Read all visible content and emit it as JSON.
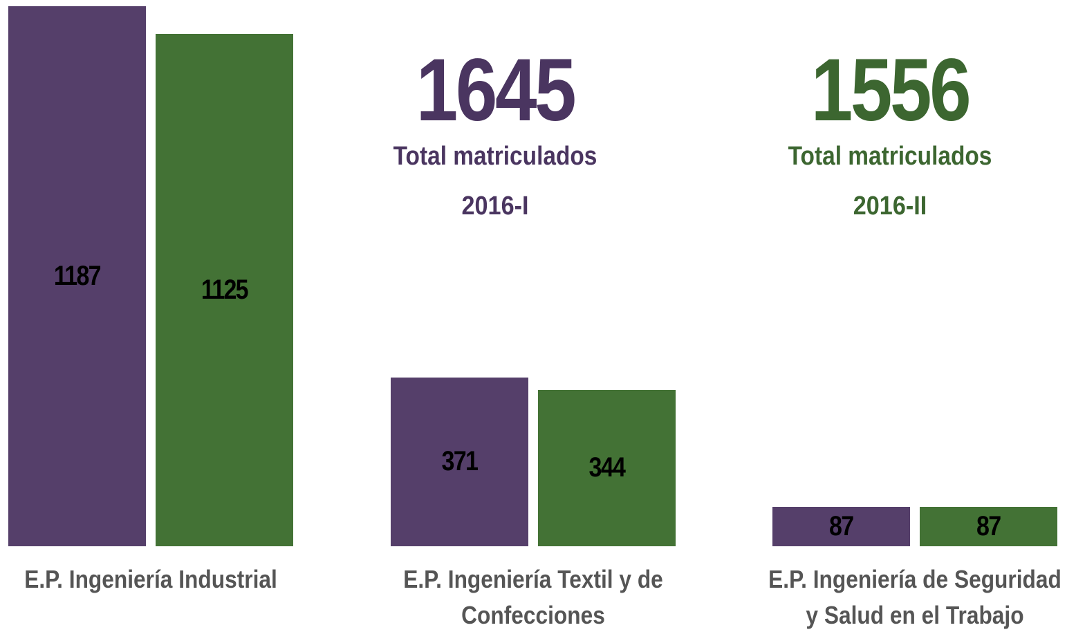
{
  "chart_data": {
    "type": "bar",
    "categories": [
      "E.P. Ingeniería Industrial",
      "E.P. Ingeniería Textil y de Confecciones",
      "E.P. Ingeniería de Seguridad y Salud en el Trabajo"
    ],
    "series": [
      {
        "name": "2016-I",
        "color": "#553f6a",
        "values": [
          1187,
          371,
          87
        ]
      },
      {
        "name": "2016-II",
        "color": "#437235",
        "values": [
          1125,
          344,
          87
        ]
      }
    ],
    "ylim": [
      0,
      1200
    ],
    "annotations": [
      {
        "total": 1645,
        "label": "Total matriculados",
        "color": "#4a3560"
      },
      {
        "total": 1556,
        "label": "Total matriculados",
        "color": "#3c6630"
      }
    ]
  }
}
